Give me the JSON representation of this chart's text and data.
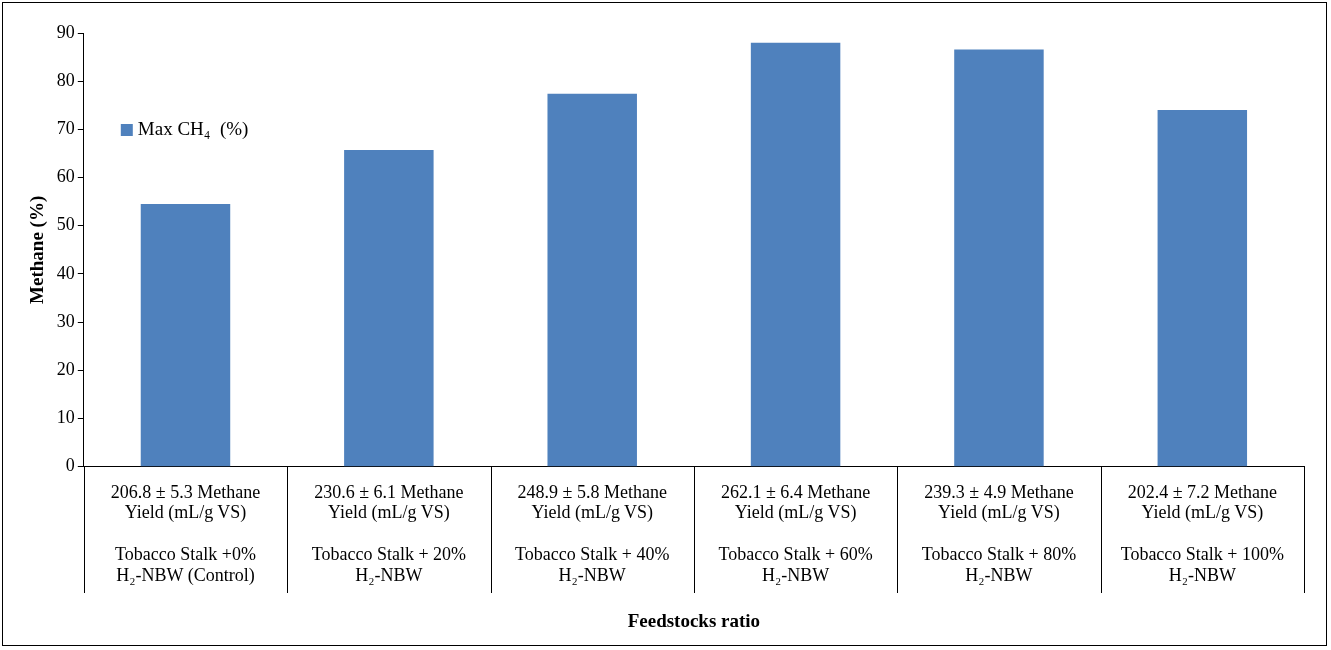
{
  "chart_data": {
    "type": "bar",
    "xlabel": "Feedstocks ratio",
    "ylabel": "Methane (%)",
    "categories": [
      "206.8 ± 5.3 Methane Yield (mL/g VS)\nTobacco Stalk +0% H₂-NBW (Control)",
      "230.6 ± 6.1 Methane Yield (mL/g VS)\nTobacco Stalk + 20% H₂-NBW",
      "248.9 ± 5.8 Methane Yield (mL/g VS)\nTobacco Stalk + 40% H₂-NBW",
      "262.1 ± 6.4 Methane Yield (mL/g VS)\nTobacco Stalk + 60% H₂-NBW",
      "239.3 ± 4.9 Methane Yield (mL/g VS)\nTobacco Stalk + 80% H₂-NBW",
      "202.4 ± 7.2 Methane Yield (mL/g VS)\nTobacco Stalk + 100% H₂-NBW"
    ],
    "series": [
      {
        "name": "Max CH₄  (%)",
        "color": "#4f81bd",
        "values": [
          54.5,
          65.7,
          77.4,
          88.0,
          86.6,
          74.0
        ]
      }
    ],
    "ylim": [
      0,
      90
    ],
    "yticks": [
      0,
      10,
      20,
      30,
      40,
      50,
      60,
      70,
      80,
      90
    ],
    "legend": "top left"
  }
}
